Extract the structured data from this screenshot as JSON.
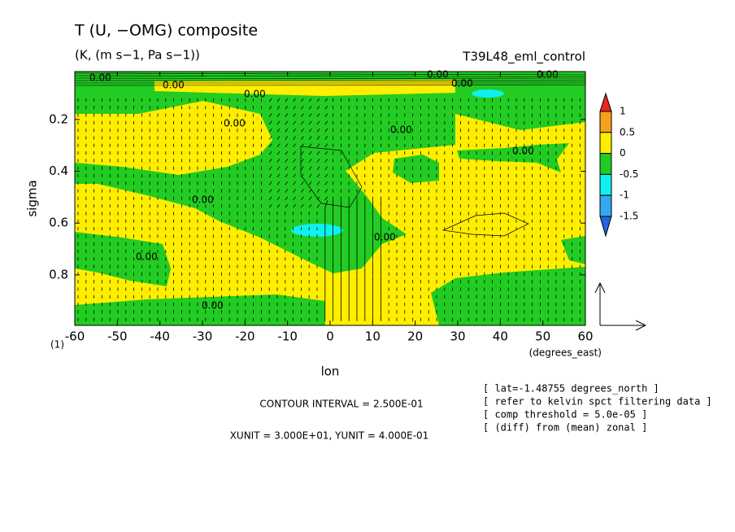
{
  "chart_data": {
    "type": "contour",
    "title": "T (U, −OMG) composite",
    "subtitle": "(K, (m s−1, Pa s−1))",
    "run_label": "T39L48_eml_control",
    "xlabel": "lon",
    "x_units": "(degrees_east)",
    "ylabel": "sigma",
    "corner_label": "(1)",
    "xlim": [
      -60,
      60
    ],
    "xticks": [
      -60,
      -50,
      -40,
      -30,
      -20,
      -10,
      0,
      10,
      20,
      30,
      40,
      50,
      60
    ],
    "ylim": [
      0.995,
      0.015
    ],
    "yticks": [
      0.2,
      0.4,
      0.6,
      0.8
    ],
    "contour_label": {
      "value": 0,
      "label": "0.00"
    },
    "colorbar": {
      "levels": [
        1,
        0.5,
        0,
        -0.5,
        -1,
        -1.5
      ],
      "colors": [
        "#e8261f",
        "#f5a21a",
        "#ffee00",
        "#22cc22",
        "#10f0f0",
        "#36a8f0",
        "#1f66e0"
      ]
    },
    "notes": [
      "CONTOUR INTERVAL = 2.500E-01",
      "XUNIT = 3.000E+01, YUNIT = 4.000E-01"
    ],
    "info": [
      "[ lat=-1.48755 degrees_north ]",
      "[ refer to kelvin spct filtering data ]",
      "[ comp threshold = 5.0e-05 ]",
      "[ (diff) from (mean) zonal ]"
    ]
  }
}
